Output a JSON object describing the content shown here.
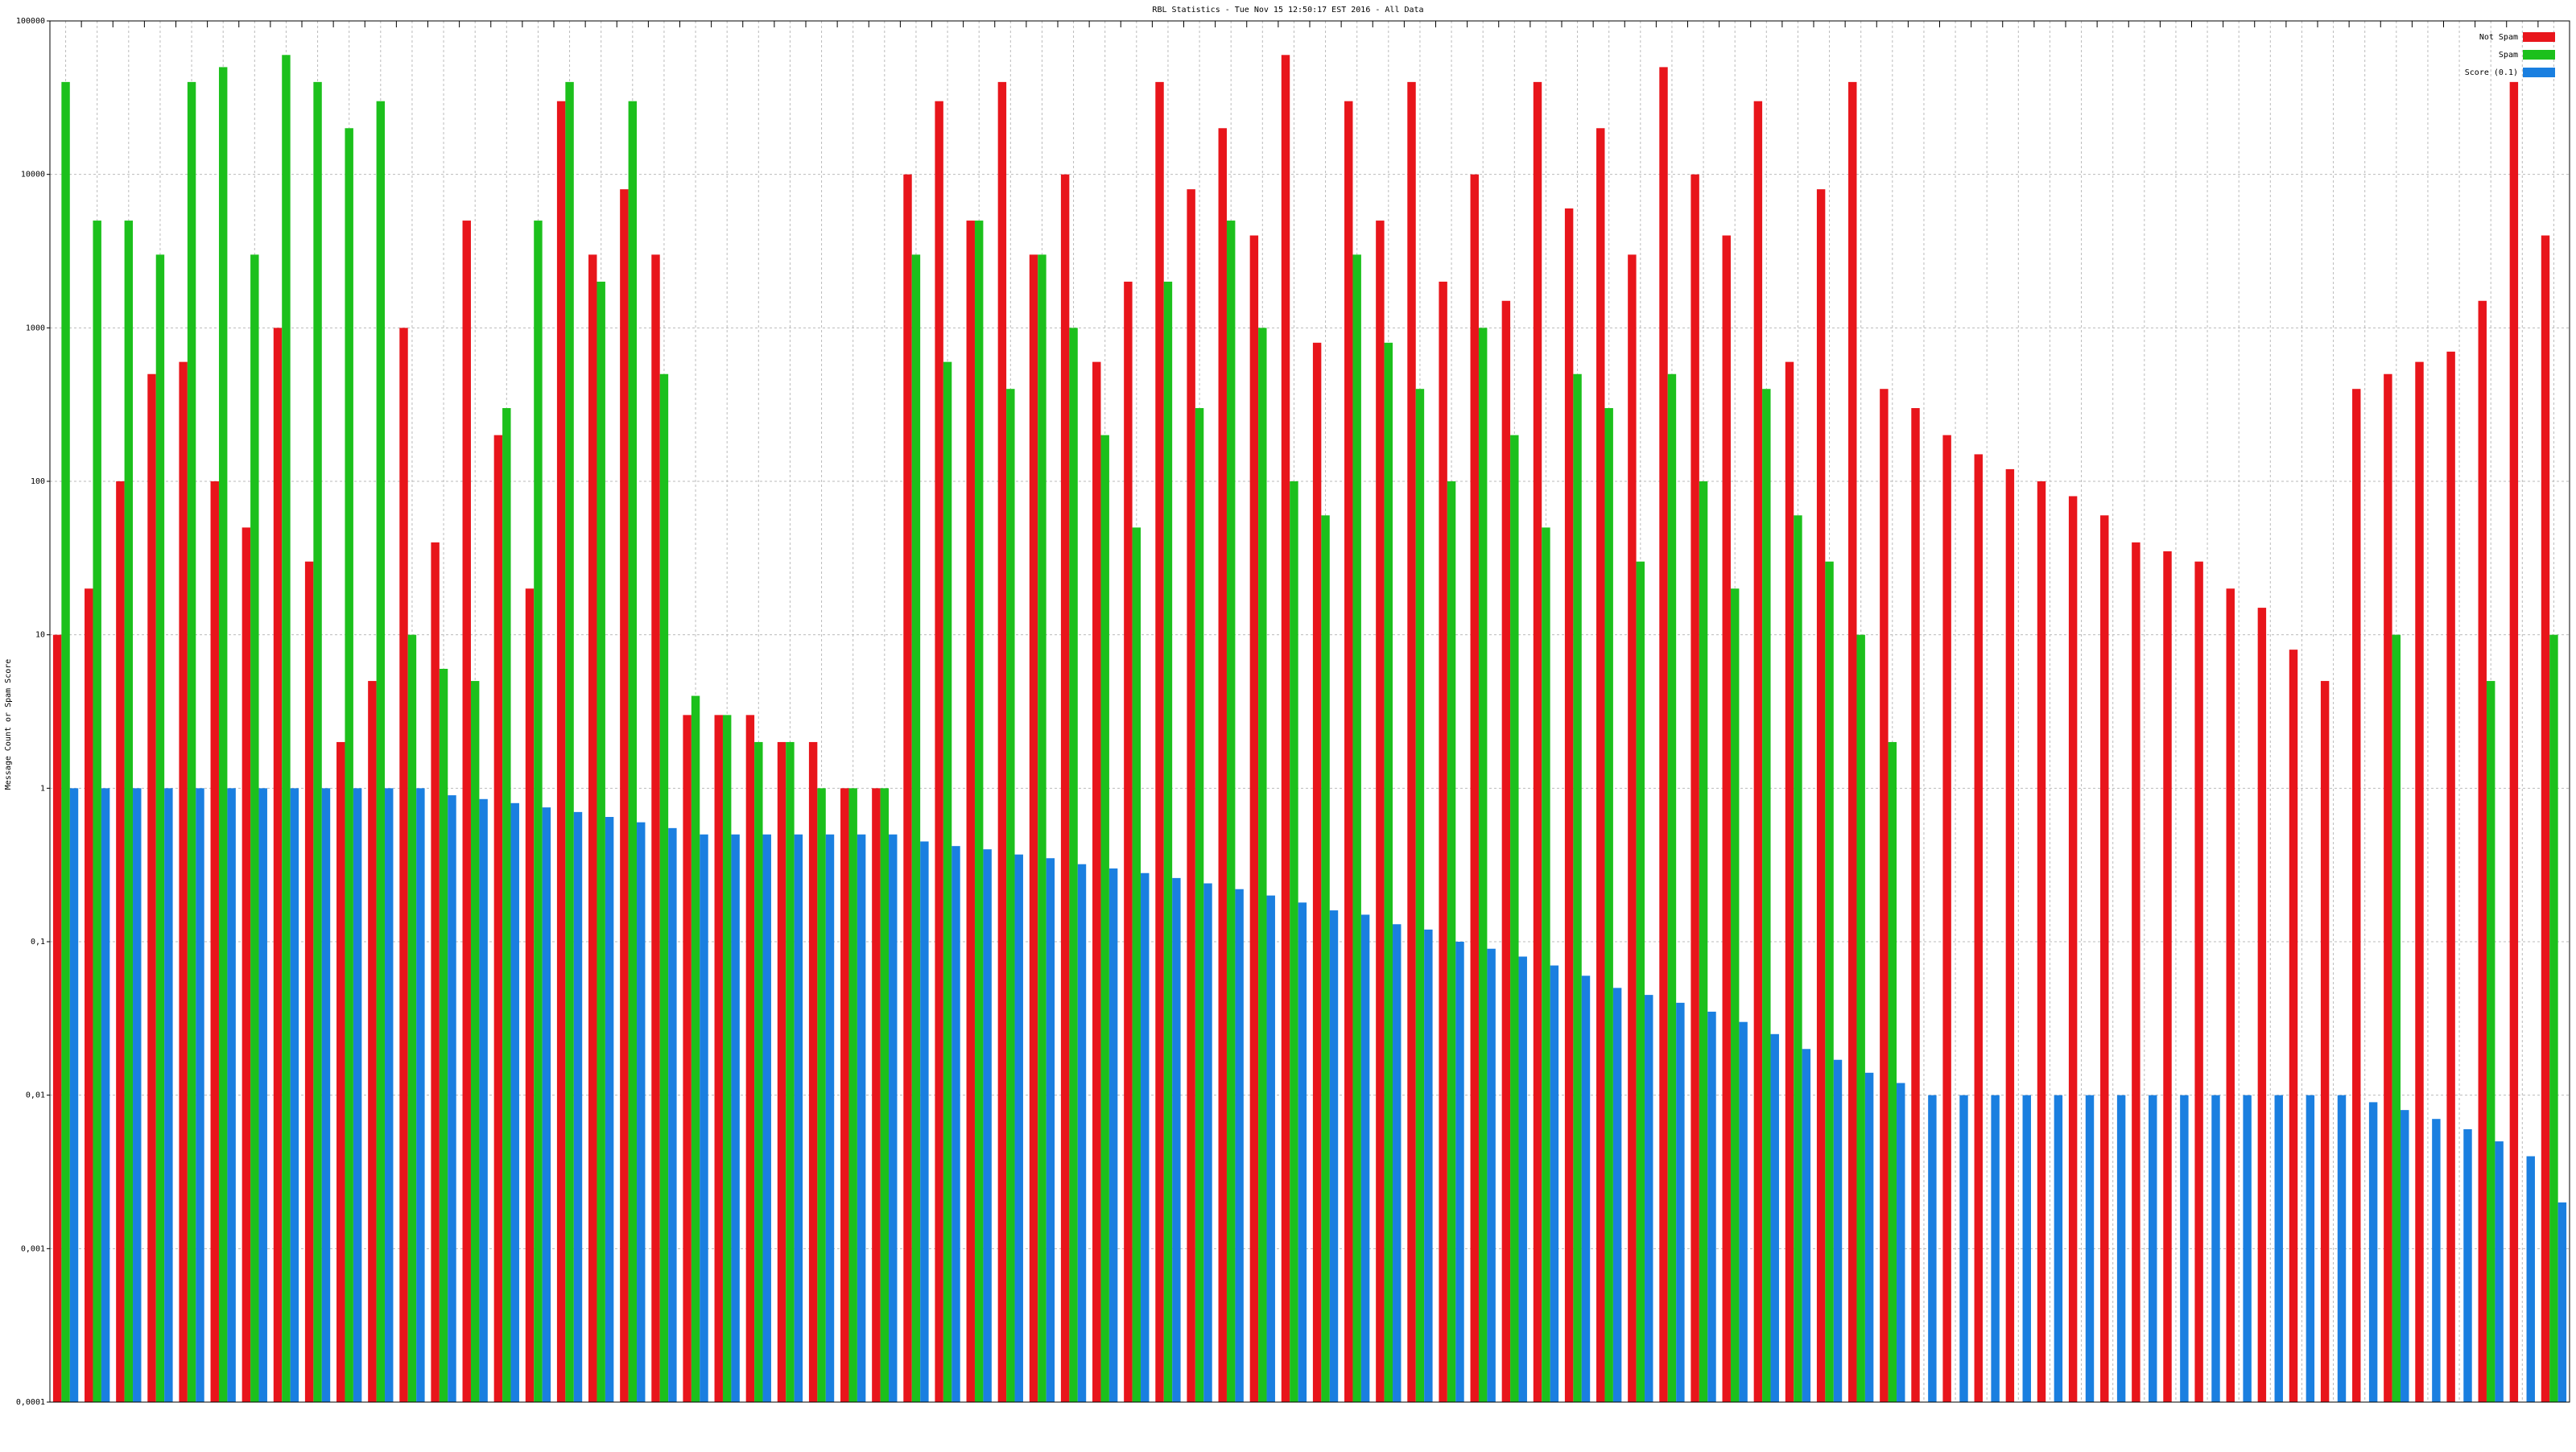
{
  "chart_data": {
    "type": "bar",
    "title": "RBL Statistics - Tue Nov 15 12:50:17 EST 2016 - All Data",
    "y_label": "Message Count or Spam Score",
    "log_scale": true,
    "grid": true,
    "legend_position": "top-right",
    "ylim": [
      0.0001,
      100000
    ],
    "yticks": [
      {
        "value": 0.0001,
        "label": "0,0001"
      },
      {
        "value": 0.001,
        "label": "0,001"
      },
      {
        "value": 0.01,
        "label": "0,01"
      },
      {
        "value": 0.1,
        "label": "0,1"
      },
      1,
      10,
      100,
      1000,
      10000,
      100000
    ],
    "categories": [
      null,
      null,
      null,
      null,
      null,
      null,
      null,
      null,
      null,
      null,
      null,
      null,
      null,
      null,
      null,
      null,
      null,
      null,
      null,
      null,
      null,
      null,
      null,
      null,
      null,
      null,
      null,
      null,
      null,
      null,
      null,
      null,
      null,
      null,
      null,
      null,
      null,
      null,
      null,
      null,
      null,
      null,
      null,
      null,
      null,
      null,
      null,
      null,
      null,
      null,
      null,
      null,
      null,
      null,
      null,
      null,
      null,
      null,
      null,
      null,
      null,
      null,
      null,
      null,
      null,
      null,
      null,
      null,
      null,
      null,
      null,
      null,
      null,
      null,
      null,
      null,
      null,
      null,
      null,
      null
    ],
    "series": [
      {
        "name": "Not Spam",
        "color": "#e8151b",
        "values": [
          10,
          20,
          100,
          500,
          600,
          100,
          50,
          1000,
          30,
          2,
          5,
          1000,
          40,
          5000,
          200,
          20,
          30000,
          3000,
          8000,
          3000,
          3,
          3,
          3,
          2,
          2,
          1,
          1,
          10000,
          30000,
          5000,
          40000,
          3000,
          10000,
          600,
          2000,
          40000,
          8000,
          20000,
          4000,
          60000,
          800,
          30000,
          5000,
          40000,
          2000,
          10000,
          1500,
          40000,
          6000,
          20000,
          3000,
          50000,
          10000,
          4000,
          30000,
          600,
          8000,
          40000,
          400,
          300,
          200,
          150,
          120,
          100,
          80,
          60,
          40,
          35,
          30,
          20,
          15,
          8,
          5,
          400,
          500,
          600,
          700,
          1500,
          40000,
          4000
        ]
      },
      {
        "name": "Spam",
        "color": "#1cc01c",
        "values": [
          40000,
          5000,
          5000,
          3000,
          40000,
          50000,
          3000,
          60000,
          40000,
          20000,
          30000,
          10,
          6,
          5,
          300,
          5000,
          40000,
          2000,
          30000,
          500,
          4,
          3,
          2,
          2,
          1,
          1,
          1,
          3000,
          600,
          5000,
          400,
          3000,
          1000,
          200,
          50,
          2000,
          300,
          5000,
          1000,
          100,
          60,
          3000,
          800,
          400,
          100,
          1000,
          200,
          50,
          500,
          300,
          30,
          500,
          100,
          20,
          400,
          60,
          30,
          10,
          2,
          null,
          null,
          null,
          null,
          null,
          null,
          null,
          null,
          null,
          null,
          null,
          null,
          null,
          null,
          null,
          10,
          null,
          null,
          5,
          null,
          10
        ]
      },
      {
        "name": "Score (0.1)",
        "color": "#1a7fe0",
        "values": [
          1,
          1,
          1,
          1,
          1,
          1,
          1,
          1,
          1,
          1,
          1,
          1,
          0.9,
          0.85,
          0.8,
          0.75,
          0.7,
          0.65,
          0.6,
          0.55,
          0.5,
          0.5,
          0.5,
          0.5,
          0.5,
          0.5,
          0.5,
          0.45,
          0.42,
          0.4,
          0.37,
          0.35,
          0.32,
          0.3,
          0.28,
          0.26,
          0.24,
          0.22,
          0.2,
          0.18,
          0.16,
          0.15,
          0.13,
          0.12,
          0.1,
          0.09,
          0.08,
          0.07,
          0.06,
          0.05,
          0.045,
          0.04,
          0.035,
          0.03,
          0.025,
          0.02,
          0.017,
          0.014,
          0.012,
          0.01,
          0.01,
          0.01,
          0.01,
          0.01,
          0.01,
          0.01,
          0.01,
          0.01,
          0.01,
          0.01,
          0.01,
          0.01,
          0.01,
          0.009,
          0.008,
          0.007,
          0.006,
          0.005,
          0.004,
          0.002
        ]
      }
    ]
  }
}
